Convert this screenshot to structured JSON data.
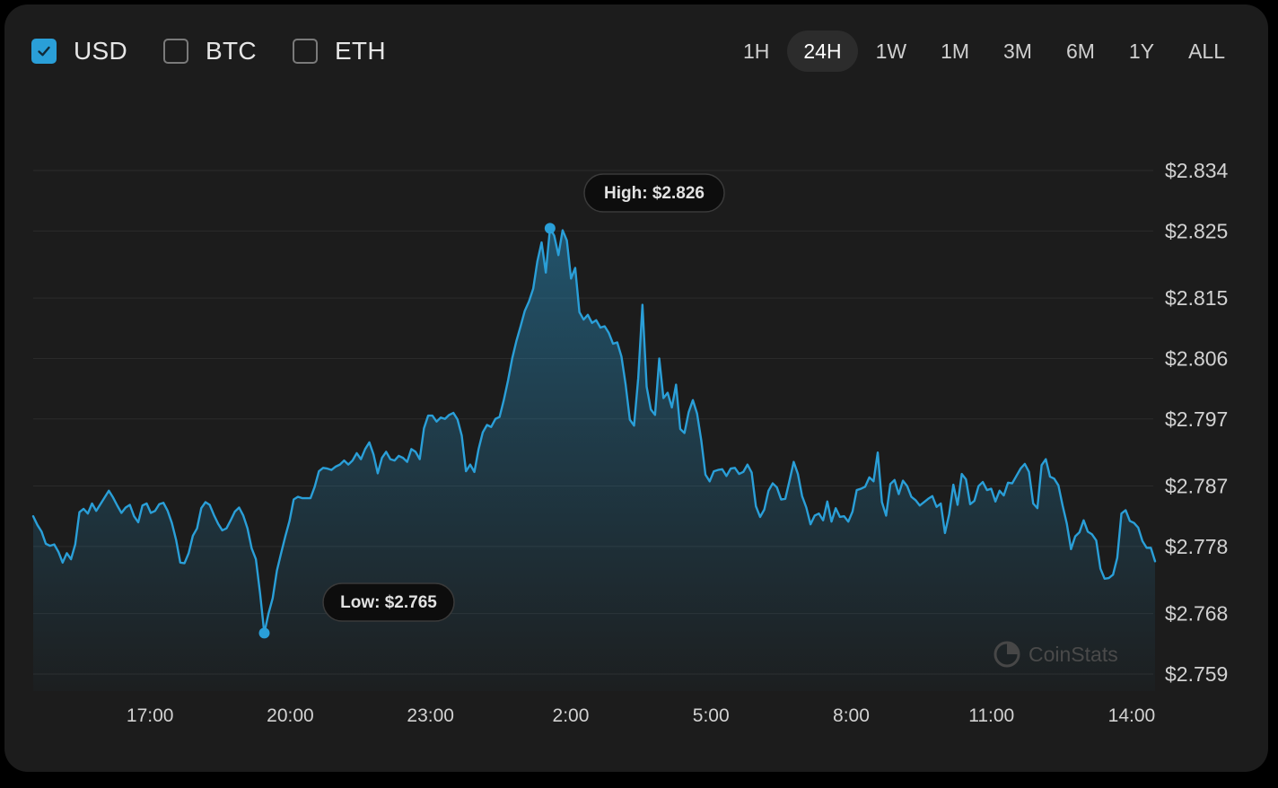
{
  "currencies": [
    {
      "label": "USD",
      "checked": true
    },
    {
      "label": "BTC",
      "checked": false
    },
    {
      "label": "ETH",
      "checked": false
    }
  ],
  "ranges": [
    "1H",
    "24H",
    "1W",
    "1M",
    "3M",
    "6M",
    "1Y",
    "ALL"
  ],
  "active_range": "24H",
  "watermark": "CoinStats",
  "colors": {
    "line": "#2a9fd8",
    "background": "#1c1c1c",
    "grid": "#2b2b2b"
  },
  "chart_data": {
    "type": "area",
    "ylim": [
      2.759,
      2.834
    ],
    "y_ticks": [
      "$2.834",
      "$2.825",
      "$2.815",
      "$2.806",
      "$2.797",
      "$2.787",
      "$2.778",
      "$2.768",
      "$2.759"
    ],
    "x_ticks": [
      "17:00",
      "20:00",
      "23:00",
      "2:00",
      "5:00",
      "8:00",
      "11:00",
      "14:00"
    ],
    "x_start_hour": 14.5,
    "x_end_hour": 38.5,
    "grid": true,
    "high_label": "High: $2.826",
    "low_label": "Low: $2.765",
    "series": [
      {
        "values": [
          2.7825,
          2.7812,
          2.7802,
          2.7784,
          2.7781,
          2.7783,
          2.7772,
          2.7756,
          2.777,
          2.7761,
          2.7783,
          2.7831,
          2.7836,
          2.7829,
          2.7844,
          2.7833,
          2.7843,
          2.7853,
          2.7863,
          2.7853,
          2.7841,
          2.783,
          2.7838,
          2.7842,
          2.7825,
          2.7816,
          2.7841,
          2.7844,
          2.783,
          2.7833,
          2.7843,
          2.7845,
          2.7833,
          2.7815,
          2.779,
          2.7756,
          2.7755,
          2.777,
          2.7796,
          2.7807,
          2.7837,
          2.7846,
          2.7842,
          2.7827,
          2.7814,
          2.7804,
          2.7807,
          2.7819,
          2.7832,
          2.7838,
          2.7826,
          2.7807,
          2.7777,
          2.7761,
          2.771,
          2.7651,
          2.768,
          2.7703,
          2.7744,
          2.777,
          2.7795,
          2.7818,
          2.785,
          2.7854,
          2.7852,
          2.7852,
          2.7852,
          2.7869,
          2.7892,
          2.7897,
          2.7896,
          2.7894,
          2.7899,
          2.7902,
          2.7908,
          2.7902,
          2.7908,
          2.7919,
          2.791,
          2.7925,
          2.7935,
          2.7917,
          2.7889,
          2.7912,
          2.7921,
          2.791,
          2.7908,
          2.7915,
          2.7912,
          2.7906,
          2.7925,
          2.7921,
          2.791,
          2.7956,
          2.7975,
          2.7975,
          2.7966,
          2.7972,
          2.797,
          2.7976,
          2.7979,
          2.7969,
          2.7945,
          2.7892,
          2.7902,
          2.7891,
          2.7925,
          2.795,
          2.7961,
          2.7958,
          2.797,
          2.7973,
          2.7998,
          2.8027,
          2.806,
          2.8086,
          2.8108,
          2.8131,
          2.8145,
          2.8164,
          2.8205,
          2.8233,
          2.8188,
          2.8254,
          2.8243,
          2.8214,
          2.8251,
          2.8236,
          2.8179,
          2.8195,
          2.8129,
          2.8118,
          2.8125,
          2.8113,
          2.8117,
          2.8106,
          2.8108,
          2.8098,
          2.8082,
          2.8084,
          2.8063,
          2.8021,
          2.7969,
          2.796,
          2.8031,
          2.814,
          2.8018,
          2.7984,
          2.7976,
          2.806,
          2.8001,
          2.8009,
          2.7987,
          2.8021,
          2.7955,
          2.7949,
          2.798,
          2.7998,
          2.7978,
          2.7938,
          2.7887,
          2.7877,
          2.7892,
          2.7894,
          2.7895,
          2.7885,
          2.7896,
          2.7897,
          2.7888,
          2.7891,
          2.7902,
          2.789,
          2.784,
          2.7824,
          2.7835,
          2.7863,
          2.7874,
          2.7868,
          2.785,
          2.7851,
          2.7878,
          2.7906,
          2.7888,
          2.7855,
          2.7838,
          2.7813,
          2.7826,
          2.7829,
          2.7819,
          2.7847,
          2.7817,
          2.7837,
          2.7824,
          2.7825,
          2.7817,
          2.7832,
          2.7864,
          2.7866,
          2.7869,
          2.7883,
          2.7877,
          2.792,
          2.7846,
          2.7826,
          2.7873,
          2.7879,
          2.7858,
          2.7878,
          2.787,
          2.7854,
          2.7849,
          2.7841,
          2.7846,
          2.7851,
          2.7855,
          2.7839,
          2.7844,
          2.78,
          2.7828,
          2.7872,
          2.7842,
          2.7888,
          2.788,
          2.7843,
          2.7848,
          2.787,
          2.7876,
          2.7864,
          2.7866,
          2.7847,
          2.7863,
          2.7856,
          2.7875,
          2.7874,
          2.7885,
          2.7896,
          2.7903,
          2.7891,
          2.7844,
          2.7837,
          2.7901,
          2.791,
          2.7884,
          2.7881,
          2.7871,
          2.7841,
          2.7814,
          2.7776,
          2.7795,
          2.7801,
          2.7819,
          2.7802,
          2.7798,
          2.7789,
          2.7747,
          2.7732,
          2.7733,
          2.7738,
          2.7763,
          2.7829,
          2.7834,
          2.7818,
          2.7815,
          2.7808,
          2.7788,
          2.7778,
          2.7778,
          2.7758
        ]
      }
    ]
  }
}
